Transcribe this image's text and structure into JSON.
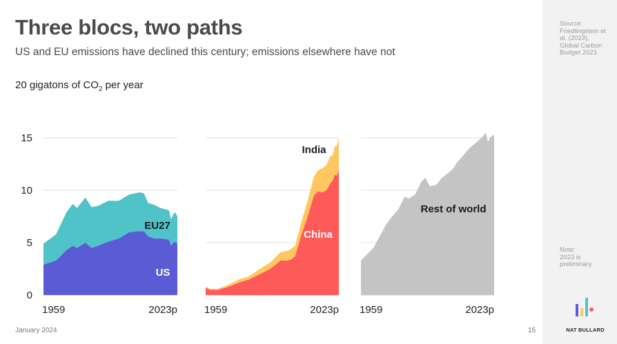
{
  "header": {
    "title": "Three blocs, two paths",
    "subtitle": "US and EU emissions have declined this century; emissions elsewhere have not",
    "unit_prefix": "20 gigatons of CO",
    "unit_sub": "2",
    "unit_suffix": " per year"
  },
  "sidebar": {
    "source": "Source:\nFriedlingstein et al. (2023), Global Carbon Budget 2023",
    "note": "Note:\n2023 is preliminary",
    "logo_label": "NAT BULLARD"
  },
  "footer": {
    "date": "January 2024",
    "page": "15"
  },
  "colors": {
    "us": "#5b5bd6",
    "eu27": "#4fc3c8",
    "china": "#ff5a5a",
    "india": "#ffc75f",
    "rest": "#c4c4c4",
    "gridline": "#dddddd"
  },
  "chart_data": [
    {
      "type": "area",
      "stacked": true,
      "x_tick_labels": [
        "1959",
        "2023p"
      ],
      "y_ticks": [
        0,
        5,
        10,
        15
      ],
      "ylim": [
        0,
        15
      ],
      "x": [
        1959,
        1965,
        1970,
        1973,
        1975,
        1979,
        1982,
        1985,
        1990,
        1995,
        2000,
        2005,
        2007,
        2009,
        2012,
        2015,
        2019,
        2020,
        2021,
        2022,
        2023
      ],
      "series": [
        {
          "name": "US",
          "values": [
            2.9,
            3.3,
            4.3,
            4.7,
            4.5,
            5.0,
            4.5,
            4.7,
            5.1,
            5.4,
            6.0,
            6.1,
            6.1,
            5.6,
            5.4,
            5.4,
            5.3,
            4.7,
            5.0,
            5.1,
            4.9
          ]
        },
        {
          "name": "EU27",
          "values": [
            2.0,
            2.5,
            3.6,
            4.0,
            3.8,
            4.3,
            3.9,
            3.8,
            3.9,
            3.6,
            3.6,
            3.7,
            3.6,
            3.2,
            3.2,
            2.9,
            2.8,
            2.5,
            2.7,
            2.8,
            2.6
          ]
        }
      ],
      "labels": [
        "EU27",
        "US"
      ]
    },
    {
      "type": "area",
      "stacked": true,
      "x_tick_labels": [
        "1959",
        "2023p"
      ],
      "y_ticks": [
        0,
        5,
        10,
        15
      ],
      "ylim": [
        0,
        15
      ],
      "x": [
        1959,
        1961,
        1965,
        1970,
        1975,
        1980,
        1985,
        1990,
        1995,
        1998,
        2000,
        2002,
        2005,
        2008,
        2011,
        2013,
        2015,
        2017,
        2019,
        2020,
        2021,
        2022,
        2023
      ],
      "series": [
        {
          "name": "China",
          "values": [
            0.7,
            0.5,
            0.5,
            0.8,
            1.2,
            1.5,
            2.0,
            2.5,
            3.3,
            3.3,
            3.4,
            3.7,
            5.8,
            7.5,
            9.5,
            9.9,
            9.8,
            10.0,
            10.7,
            10.9,
            11.5,
            11.4,
            11.9
          ]
        },
        {
          "name": "India",
          "values": [
            0.1,
            0.1,
            0.1,
            0.2,
            0.3,
            0.3,
            0.5,
            0.6,
            0.8,
            0.9,
            1.0,
            1.0,
            1.2,
            1.5,
            1.8,
            2.0,
            2.3,
            2.4,
            2.6,
            2.4,
            2.7,
            2.8,
            3.1
          ]
        }
      ],
      "labels": [
        "India",
        "China"
      ]
    },
    {
      "type": "area",
      "stacked": false,
      "x_tick_labels": [
        "1959",
        "2023p"
      ],
      "y_ticks": [
        0,
        5,
        10,
        15
      ],
      "ylim": [
        0,
        15
      ],
      "x": [
        1959,
        1962,
        1965,
        1968,
        1971,
        1974,
        1977,
        1980,
        1982,
        1985,
        1988,
        1990,
        1992,
        1995,
        1998,
        2000,
        2003,
        2005,
        2008,
        2011,
        2014,
        2017,
        2019,
        2020,
        2021,
        2022,
        2023
      ],
      "series": [
        {
          "name": "Rest of world",
          "values": [
            3.3,
            3.9,
            4.5,
            5.6,
            6.7,
            7.5,
            8.2,
            9.4,
            9.2,
            9.6,
            10.8,
            11.2,
            10.4,
            10.5,
            11.2,
            11.5,
            12.0,
            12.6,
            13.3,
            14.0,
            14.5,
            15.0,
            15.5,
            14.6,
            15.0,
            15.2,
            15.3
          ]
        }
      ],
      "labels": [
        "Rest of world"
      ]
    }
  ]
}
